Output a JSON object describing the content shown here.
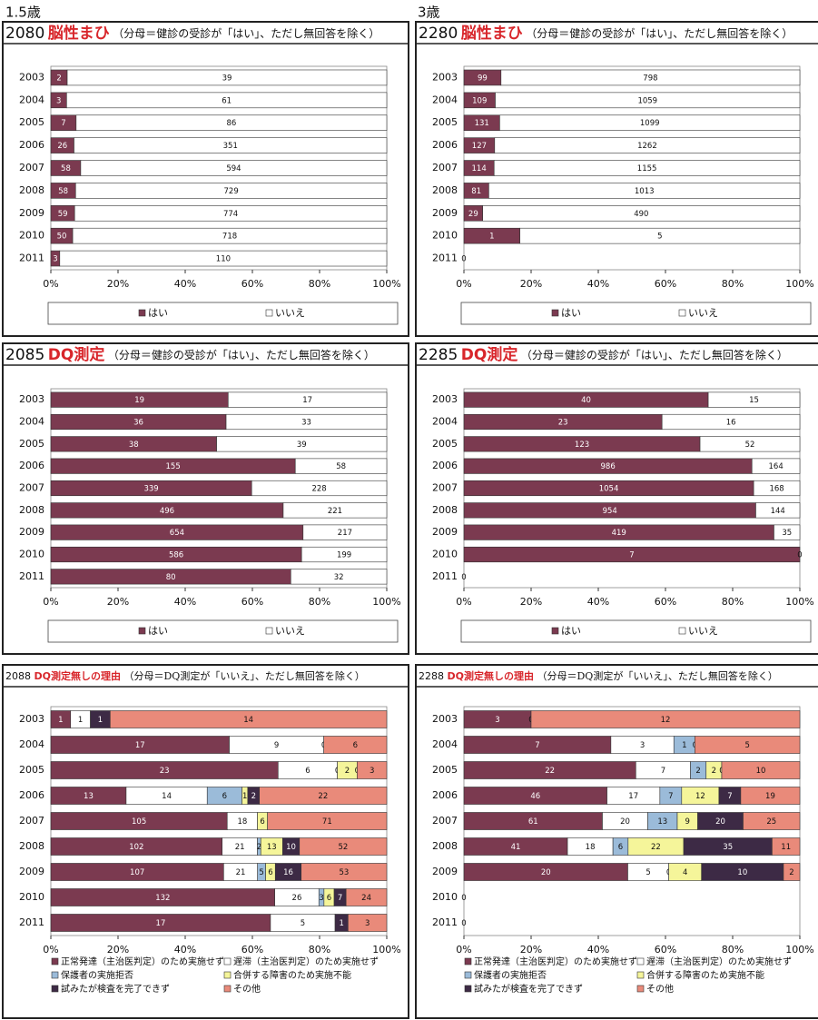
{
  "columns": [
    "1.5歳",
    "3歳"
  ],
  "chart_data": [
    {
      "type": "stacked_bar_100",
      "code": "2080",
      "title": "脳性まひ",
      "note": "（分母＝健診の受診が「はい」、ただし無回答を除く）",
      "categories": [
        "2003",
        "2004",
        "2005",
        "2006",
        "2007",
        "2008",
        "2009",
        "2010",
        "2011"
      ],
      "series": [
        {
          "name": "はい",
          "color": "#7b3a50",
          "values": [
            2,
            3,
            7,
            26,
            58,
            58,
            59,
            50,
            3
          ]
        },
        {
          "name": "いいえ",
          "color": "#ffffff",
          "values": [
            39,
            61,
            86,
            351,
            594,
            729,
            774,
            718,
            110
          ]
        }
      ],
      "xlim": [
        0,
        100
      ],
      "xticks": [
        {
          "value": 0,
          "label": "0%"
        },
        {
          "value": 20,
          "label": "20%"
        },
        {
          "value": 40,
          "label": "40%"
        },
        {
          "value": 60,
          "label": "60%"
        },
        {
          "value": 80,
          "label": "80%"
        },
        {
          "value": 100,
          "label": "100%"
        }
      ]
    },
    {
      "type": "stacked_bar_100",
      "code": "2280",
      "title": "脳性まひ",
      "note": "（分母＝健診の受診が「はい」、ただし無回答を除く）",
      "categories": [
        "2003",
        "2004",
        "2005",
        "2006",
        "2007",
        "2008",
        "2009",
        "2010",
        "2011"
      ],
      "series": [
        {
          "name": "はい",
          "color": "#7b3a50",
          "values": [
            99,
            109,
            131,
            127,
            114,
            81,
            29,
            1,
            0
          ]
        },
        {
          "name": "いいえ",
          "color": "#ffffff",
          "values": [
            798,
            1059,
            1099,
            1262,
            1155,
            1013,
            490,
            5,
            null
          ]
        }
      ],
      "xlim": [
        0,
        100
      ],
      "xticks": [
        {
          "value": 0,
          "label": "0%"
        },
        {
          "value": 20,
          "label": "20%"
        },
        {
          "value": 40,
          "label": "40%"
        },
        {
          "value": 60,
          "label": "60%"
        },
        {
          "value": 80,
          "label": "80%"
        },
        {
          "value": 100,
          "label": "100%"
        }
      ]
    },
    {
      "type": "stacked_bar_100",
      "code": "2085",
      "title": "DQ測定",
      "note": "（分母＝健診の受診が「はい」、ただし無回答を除く）",
      "categories": [
        "2003",
        "2004",
        "2005",
        "2006",
        "2007",
        "2008",
        "2009",
        "2010",
        "2011"
      ],
      "series": [
        {
          "name": "はい",
          "color": "#7b3a50",
          "values": [
            19,
            36,
            38,
            155,
            339,
            496,
            654,
            586,
            80
          ]
        },
        {
          "name": "いいえ",
          "color": "#ffffff",
          "values": [
            17,
            33,
            39,
            58,
            228,
            221,
            217,
            199,
            32
          ]
        }
      ],
      "xlim": [
        0,
        100
      ],
      "xticks": [
        {
          "value": 0,
          "label": "0%"
        },
        {
          "value": 20,
          "label": "20%"
        },
        {
          "value": 40,
          "label": "40%"
        },
        {
          "value": 60,
          "label": "60%"
        },
        {
          "value": 80,
          "label": "80%"
        },
        {
          "value": 100,
          "label": "100%"
        }
      ]
    },
    {
      "type": "stacked_bar_100",
      "code": "2285",
      "title": "DQ測定",
      "note": "（分母＝健診の受診が「はい」、ただし無回答を除く）",
      "categories": [
        "2003",
        "2004",
        "2005",
        "2006",
        "2007",
        "2008",
        "2009",
        "2010",
        "2011"
      ],
      "series": [
        {
          "name": "はい",
          "color": "#7b3a50",
          "values": [
            40,
            23,
            123,
            986,
            1054,
            954,
            419,
            7,
            0
          ]
        },
        {
          "name": "いいえ",
          "color": "#ffffff",
          "values": [
            15,
            16,
            52,
            164,
            168,
            144,
            35,
            0,
            null
          ]
        }
      ],
      "xlim": [
        0,
        100
      ],
      "xticks": [
        {
          "value": 0,
          "label": "0%"
        },
        {
          "value": 20,
          "label": "20%"
        },
        {
          "value": 40,
          "label": "40%"
        },
        {
          "value": 60,
          "label": "60%"
        },
        {
          "value": 80,
          "label": "80%"
        },
        {
          "value": 100,
          "label": "100%"
        }
      ]
    },
    {
      "type": "stacked_bar_100",
      "code": "2088",
      "title": "DQ測定無しの理由",
      "note": "（分母＝DQ測定が「いいえ」、ただし無回答を除く）",
      "categories": [
        "2003",
        "2004",
        "2005",
        "2006",
        "2007",
        "2008",
        "2009",
        "2010",
        "2011"
      ],
      "series": [
        {
          "name": "正常発達（主治医判定）のため実施せず",
          "color": "#7b3a50",
          "values": [
            1,
            17,
            23,
            13,
            105,
            102,
            107,
            132,
            17
          ]
        },
        {
          "name": "遅滞（主治医判定）のため実施せず",
          "color": "#ffffff",
          "values": [
            1,
            9,
            6,
            14,
            18,
            21,
            21,
            26,
            5
          ]
        },
        {
          "name": "保護者の実施拒否",
          "color": "#9bbbd9",
          "values": [
            null,
            null,
            0,
            6,
            null,
            2,
            5,
            3,
            null
          ]
        },
        {
          "name": "合併する障害のため実施不能",
          "color": "#f5f59a",
          "values": [
            null,
            null,
            2,
            1,
            6,
            13,
            6,
            6,
            null
          ]
        },
        {
          "name": "試みたが検査を完了できず",
          "color": "#3d2a45",
          "values": [
            1,
            0,
            0,
            2,
            null,
            10,
            16,
            7,
            1
          ]
        },
        {
          "name": "その他",
          "color": "#e98a7a",
          "values": [
            14,
            6,
            3,
            22,
            71,
            52,
            53,
            24,
            3
          ]
        }
      ],
      "xlim": [
        0,
        100
      ],
      "xticks": [
        {
          "value": 0,
          "label": "0%"
        },
        {
          "value": 20,
          "label": "20%"
        },
        {
          "value": 40,
          "label": "40%"
        },
        {
          "value": 60,
          "label": "60%"
        },
        {
          "value": 80,
          "label": "80%"
        },
        {
          "value": 100,
          "label": "100%"
        }
      ]
    },
    {
      "type": "stacked_bar_100",
      "code": "2288",
      "title": "DQ測定無しの理由",
      "note": "（分母＝DQ測定が「いいえ」、ただし無回答を除く）",
      "categories": [
        "2003",
        "2004",
        "2005",
        "2006",
        "2007",
        "2008",
        "2009",
        "2010",
        "2011"
      ],
      "series": [
        {
          "name": "正常発達（主治医判定）のため実施せず",
          "color": "#7b3a50",
          "values": [
            3,
            7,
            22,
            46,
            61,
            41,
            20,
            0,
            0
          ]
        },
        {
          "name": "遅滞（主治医判定）のため実施せず",
          "color": "#ffffff",
          "values": [
            null,
            3,
            7,
            17,
            20,
            18,
            5,
            null,
            null
          ]
        },
        {
          "name": "保護者の実施拒否",
          "color": "#9bbbd9",
          "values": [
            null,
            1,
            2,
            7,
            13,
            6,
            0,
            null,
            null
          ]
        },
        {
          "name": "合併する障害のため実施不能",
          "color": "#f5f59a",
          "values": [
            null,
            0,
            2,
            12,
            9,
            22,
            4,
            null,
            null
          ]
        },
        {
          "name": "試みたが検査を完了できず",
          "color": "#3d2a45",
          "values": [
            0,
            null,
            0,
            7,
            20,
            35,
            10,
            null,
            null
          ]
        },
        {
          "name": "その他",
          "color": "#e98a7a",
          "values": [
            12,
            5,
            10,
            19,
            25,
            11,
            2,
            null,
            null
          ]
        }
      ],
      "xlim": [
        0,
        100
      ],
      "xticks": [
        {
          "value": 0,
          "label": "0%"
        },
        {
          "value": 20,
          "label": "20%"
        },
        {
          "value": 40,
          "label": "40%"
        },
        {
          "value": 60,
          "label": "60%"
        },
        {
          "value": 80,
          "label": "80%"
        },
        {
          "value": 100,
          "label": "100%"
        }
      ]
    }
  ]
}
